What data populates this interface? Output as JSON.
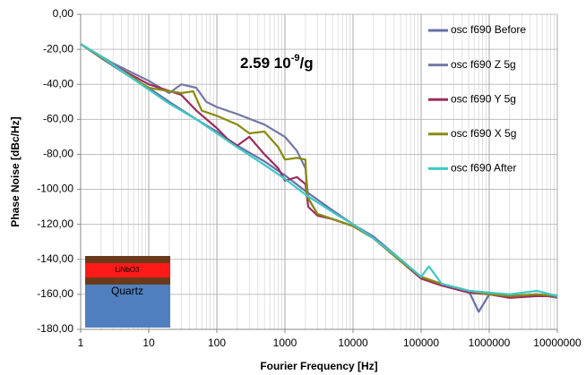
{
  "chart_data": {
    "type": "line",
    "x_label": "Fourier Frequency [Hz]",
    "y_label": "Phase Noise [dBc/Hz]",
    "annotation": {
      "text": "2.59 10",
      "sup": "-9",
      "suffix": "/g"
    },
    "inset": {
      "layers": [
        "LiNbO3",
        "Quartz"
      ]
    },
    "xscale": "log",
    "xlim": [
      1,
      10000000
    ],
    "xticks": [
      1,
      10,
      100,
      1000,
      10000,
      100000,
      1000000,
      10000000
    ],
    "ylim": [
      -180,
      0
    ],
    "yticks": [
      {
        "value": 0,
        "label": "0,00"
      },
      {
        "value": -20,
        "label": "-20,00"
      },
      {
        "value": -40,
        "label": "-40,00"
      },
      {
        "value": -60,
        "label": "-60,00"
      },
      {
        "value": -80,
        "label": "-80,00"
      },
      {
        "value": -100,
        "label": "-100,00"
      },
      {
        "value": -120,
        "label": "-120,00"
      },
      {
        "value": -140,
        "label": "-140,00"
      },
      {
        "value": -160,
        "label": "-160,00"
      },
      {
        "value": -180,
        "label": "-180,00"
      }
    ],
    "grid": true,
    "minor_grid": true,
    "legend": "right",
    "series": [
      {
        "name": "osc f690 Before",
        "color": "#6670a8",
        "x": [
          1,
          2,
          5,
          10,
          20,
          50,
          100,
          200,
          500,
          1000,
          2000,
          5000,
          10000,
          20000,
          50000,
          100000,
          130000,
          200000,
          500000,
          700000,
          1000000,
          2000000,
          5000000,
          10000000
        ],
        "values": [
          -17,
          -25,
          -35,
          -42,
          -50,
          -60,
          -67,
          -75,
          -84,
          -92,
          -101,
          -112,
          -120,
          -127,
          -140,
          -150,
          -152,
          -154,
          -158,
          -170,
          -160,
          -161,
          -160,
          -161
        ]
      },
      {
        "name": "osc f690 Z 5g",
        "color": "#7478a6",
        "x": [
          1,
          3,
          10,
          20,
          30,
          50,
          70,
          100,
          200,
          500,
          1000,
          1500,
          2000,
          2200,
          3000,
          5000,
          10000,
          20000,
          50000,
          100000,
          200000,
          500000,
          1000000,
          2000000,
          5000000,
          10000000
        ],
        "values": [
          -17,
          -28,
          -38,
          -45,
          -40,
          -42,
          -50,
          -53,
          -57,
          -63,
          -70,
          -78,
          -88,
          -105,
          -114,
          -117,
          -121,
          -128,
          -141,
          -150,
          -154,
          -158,
          -159,
          -161,
          -160,
          -162
        ]
      },
      {
        "name": "osc f690 Y 5g",
        "color": "#9b2d5e",
        "x": [
          1,
          3,
          10,
          30,
          50,
          100,
          150,
          200,
          300,
          500,
          800,
          1000,
          1500,
          2000,
          2200,
          3000,
          5000,
          10000,
          20000,
          50000,
          100000,
          200000,
          500000,
          1000000,
          2000000,
          5000000,
          10000000
        ],
        "values": [
          -17,
          -29,
          -40,
          -46,
          -55,
          -65,
          -72,
          -75,
          -70,
          -80,
          -88,
          -95,
          -93,
          -97,
          -110,
          -115,
          -117,
          -121,
          -128,
          -141,
          -151,
          -155,
          -159,
          -160,
          -162,
          -161,
          -161
        ]
      },
      {
        "name": "osc f690 X 5g",
        "color": "#8a8a10",
        "x": [
          1,
          3,
          10,
          30,
          45,
          60,
          100,
          200,
          300,
          500,
          800,
          1000,
          1500,
          2000,
          2100,
          3000,
          5000,
          10000,
          20000,
          50000,
          100000,
          200000,
          500000,
          1000000,
          2000000,
          5000000,
          10000000
        ],
        "values": [
          -17,
          -29,
          -42,
          -45,
          -44,
          -55,
          -58,
          -63,
          -68,
          -67,
          -76,
          -83,
          -82,
          -83,
          -104,
          -114,
          -117,
          -121,
          -128,
          -141,
          -150,
          -154,
          -158,
          -160,
          -161,
          -160,
          -161
        ]
      },
      {
        "name": "osc f690 After",
        "color": "#3cc8c8",
        "x": [
          1,
          2,
          5,
          10,
          20,
          50,
          100,
          200,
          500,
          1000,
          2000,
          5000,
          10000,
          20000,
          50000,
          100000,
          130000,
          200000,
          500000,
          1000000,
          2000000,
          5000000,
          10000000
        ],
        "values": [
          -17,
          -24,
          -35,
          -43,
          -51,
          -60,
          -68,
          -76,
          -86,
          -94,
          -103,
          -113,
          -120,
          -128,
          -140,
          -150,
          -144,
          -154,
          -158,
          -159,
          -160,
          -158,
          -161
        ]
      }
    ]
  }
}
